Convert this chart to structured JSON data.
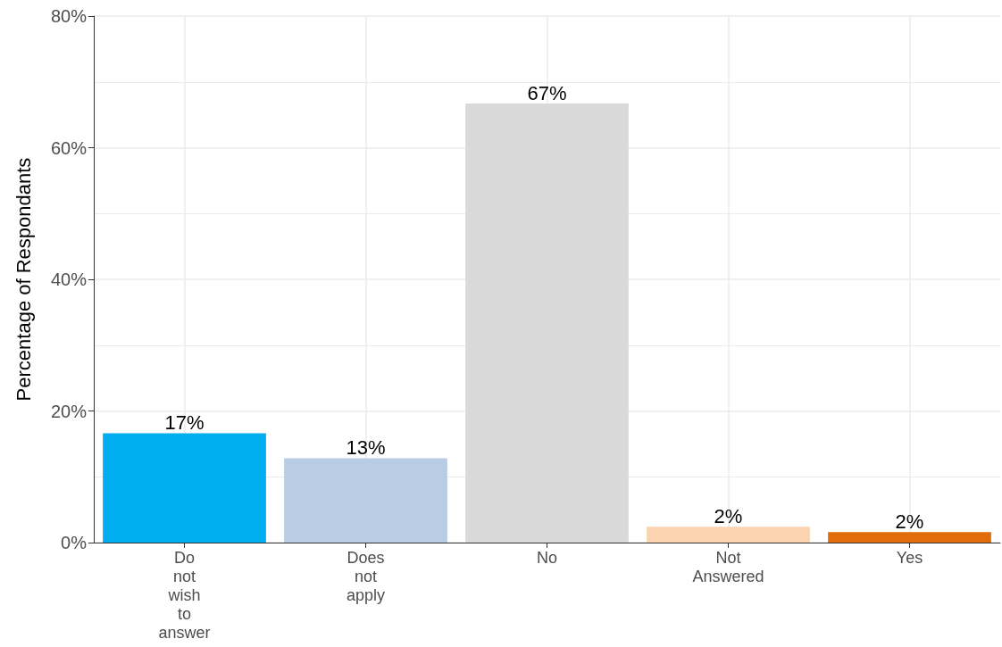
{
  "chart_data": {
    "type": "bar",
    "ylabel": "Percentage of Respondants",
    "categories": [
      "Do not wish to answer",
      "Does not apply",
      "No",
      "Not Answered",
      "Yes"
    ],
    "values": [
      16.6,
      12.8,
      66.7,
      2.4,
      1.6
    ],
    "colors": [
      "#00aeef",
      "#b8cce4",
      "#d9d9d9",
      "#fbd3b0",
      "#e36c0a"
    ],
    "value_labels": [
      "17%",
      "13%",
      "67%",
      "2%",
      "2%"
    ],
    "ylim": [
      0,
      80
    ],
    "yticks": [
      {
        "value": 0,
        "label": "0%"
      },
      {
        "value": 20,
        "label": "20%"
      },
      {
        "value": 40,
        "label": "40%"
      },
      {
        "value": 60,
        "label": "60%"
      },
      {
        "value": 80,
        "label": "80%"
      }
    ],
    "grid": true
  }
}
